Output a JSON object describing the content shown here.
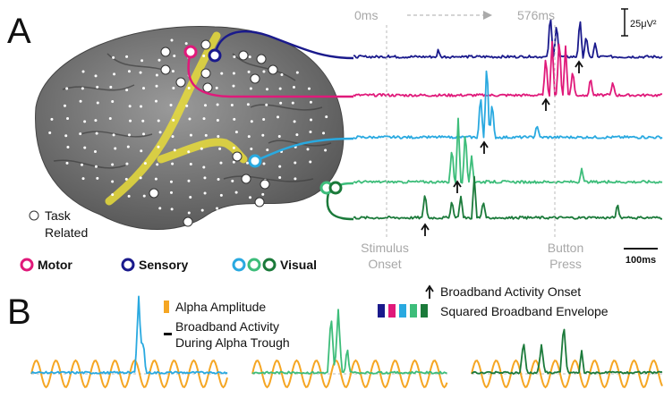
{
  "panel_a": {
    "label": "A",
    "time_start": "0ms",
    "time_button": "576ms",
    "scale_amplitude": "25μV²",
    "scale_time": "100ms",
    "stimulus_onset": [
      "Stimulus",
      "Onset"
    ],
    "button_press": [
      "Button",
      "Press"
    ],
    "task_related": [
      "Task",
      "Related"
    ],
    "legend": {
      "motor": "Motor",
      "sensory": "Sensory",
      "visual": "Visual"
    }
  },
  "panel_b": {
    "label": "B",
    "legend": {
      "alpha": "Alpha Amplitude",
      "broadband_trough": [
        "Broadband Activity",
        "During Alpha Trough"
      ],
      "onset": "Broadband Activity Onset",
      "envelope": "Squared Broadband Envelope"
    }
  }
}
